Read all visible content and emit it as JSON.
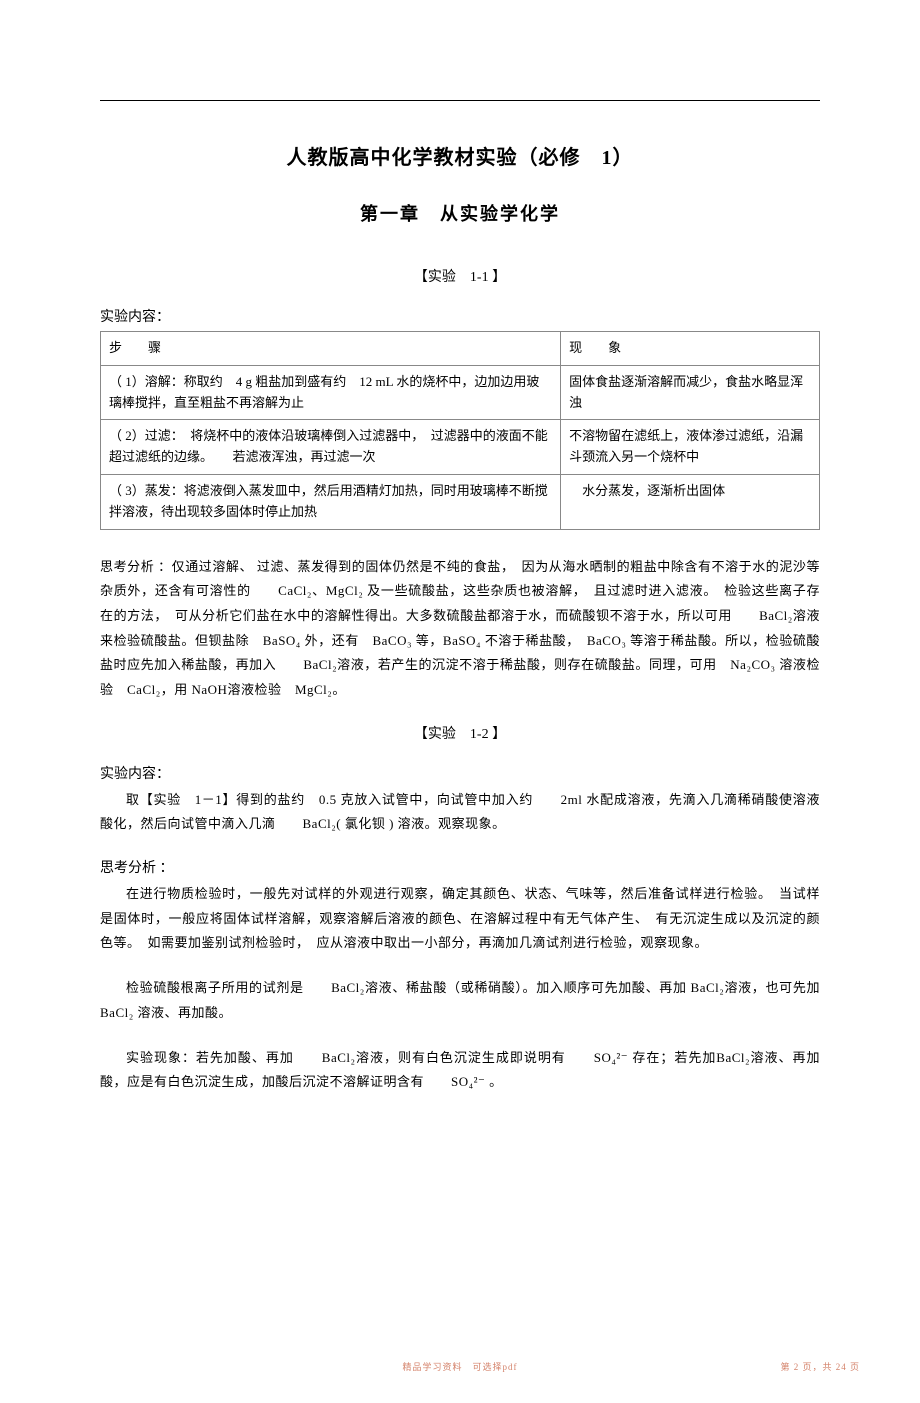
{
  "title": "人教版高中化学教材实验（必修　1）",
  "subtitle": "第一章　从实验学化学",
  "experiment1_label": "【实验　1-1 】",
  "section_content": "实验内容：",
  "table": {
    "headers": {
      "step": "步　　骤",
      "phenomenon": "现　　象"
    },
    "rows": [
      {
        "step": "（ 1）溶解：称取约　4 g 粗盐加到盛有约　12 mL 水的烧杯中，边加边用玻璃棒搅拌，直至粗盐不再溶解为止",
        "phenomenon": "固体食盐逐渐溶解而减少，食盐水略显浑浊"
      },
      {
        "step": "（ 2）过滤：　将烧杯中的液体沿玻璃棒倒入过滤器中，　过滤器中的液面不能超过滤纸的边缘。　　若滤液浑浊，再过滤一次",
        "phenomenon": "不溶物留在滤纸上，液体渗过滤纸，沿漏斗颈流入另一个烧杯中"
      },
      {
        "step": "（ 3）蒸发：将滤液倒入蒸发皿中，然后用酒精灯加热，同时用玻璃棒不断搅拌溶液，待出现较多固体时停止加热",
        "phenomenon": "　水分蒸发，逐渐析出固体"
      }
    ]
  },
  "analysis1": "思考分析 ：仅通过溶解、 过滤、蒸发得到的固体仍然是不纯的食盐，　因为从海水晒制的粗盐中除含有不溶于水的泥沙等杂质外，还含有可溶性的　　CaCl₂、MgCl₂ 及一些硫酸盐，这些杂质也被溶解，　且过滤时进入滤液。　检验这些离子存在的方法，　可从分析它们盐在水中的溶解性得出。大多数硫酸盐都溶于水，而硫酸钡不溶于水，所以可用　　BaCl₂溶液来检验硫酸盐。但钡盐除　BaSO₄ 外，还有　BaCO₃ 等，BaSO₄ 不溶于稀盐酸，　BaCO₃ 等溶于稀盐酸。所以，检验硫酸盐时应先加入稀盐酸，再加入　　BaCl₂溶液，若产生的沉淀不溶于稀盐酸，则存在硫酸盐。同理，可用　Na₂CO₃ 溶液检验　CaCl₂，用 NaOH溶液检验　MgCl₂。",
  "experiment2_label": "【实验　1-2 】",
  "content2_label": "实验内容：",
  "content2_text": "取【实验　1－1】得到的盐约　0.5 克放入试管中，向试管中加入约　　2ml 水配成溶液，先滴入几滴稀硝酸使溶液酸化，然后向试管中滴入几滴　　BaCl₂( 氯化钡 ) 溶液。观察现象。",
  "analysis2_label": "思考分析 ：",
  "analysis2_p1": "在进行物质检验时，一般先对试样的外观进行观察，确定其颜色、状态、气味等，然后准备试样进行检验。　当试样是固体时，一般应将固体试样溶解，观察溶解后溶液的颜色、在溶解过程中有无气体产生、　有无沉淀生成以及沉淀的颜色等。　如需要加鉴别试剂检验时，　应从溶液中取出一小部分，再滴加几滴试剂进行检验，观察现象。",
  "analysis2_p2": "检验硫酸根离子所用的试剂是　　BaCl₂溶液、稀盐酸（或稀硝酸）。加入顺序可先加酸、再加 BaCl₂溶液，也可先加　BaCl₂ 溶液、再加酸。",
  "analysis2_p3": "实验现象：若先加酸、再加　　BaCl₂溶液，则有白色沉淀生成即说明有　　SO₄²⁻ 存在；若先加BaCl₂溶液、再加酸，应是有白色沉淀生成，加酸后沉淀不溶解证明含有　　SO₄²⁻ 。",
  "footer_left": "精品学习资料　可选择pdf",
  "footer_right": "第 2 页，共 24 页"
}
